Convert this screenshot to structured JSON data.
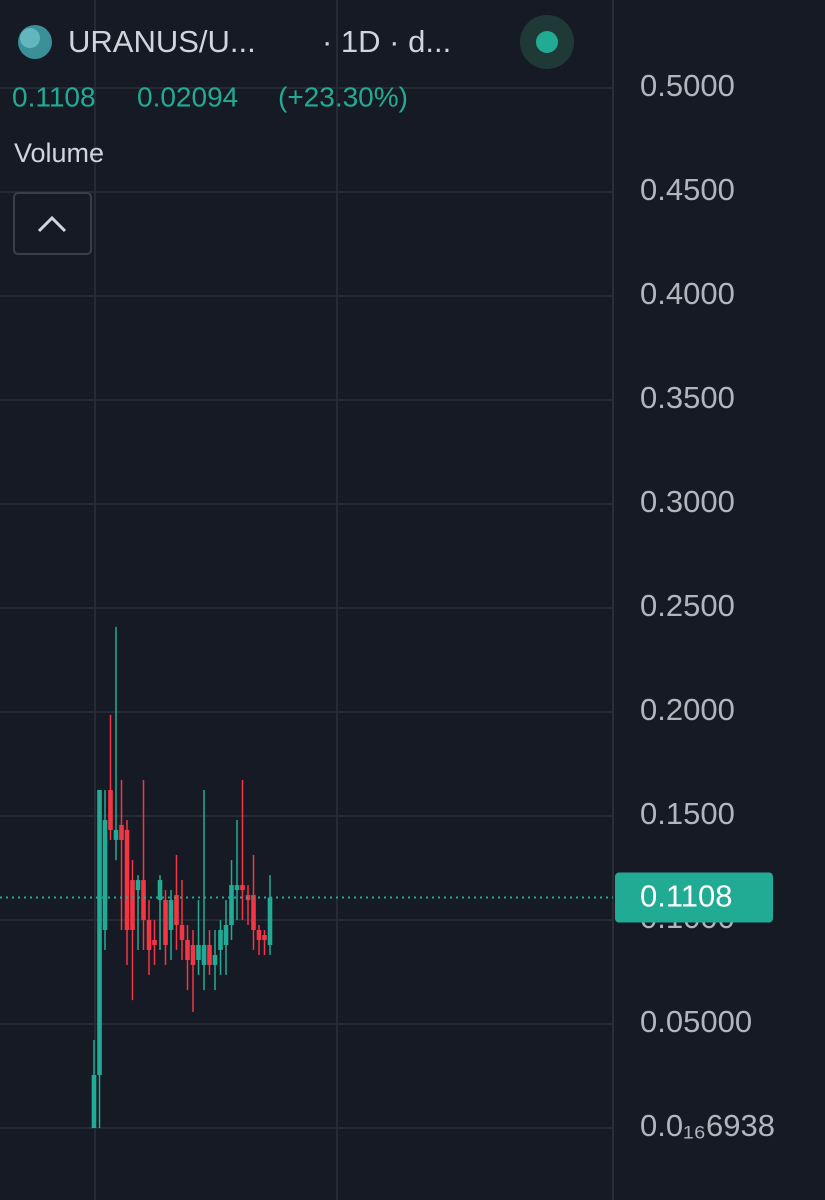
{
  "header": {
    "symbol": "URANUS/U...",
    "interval": "· 1D · d...",
    "change": 0.02094,
    "change_percent": {
      "value": 23.3,
      "label": "(+23.30%)"
    },
    "indicator": "Volume"
  },
  "chart_data": {
    "type": "candlestick",
    "open": [
      0.0,
      0.0255,
      0.0952,
      0.1625,
      0.1385,
      0.1457,
      0.1433,
      0.1192,
      0.1144,
      0.1192,
      0.1,
      0.0904,
      0.1096,
      0.1096,
      0.0952,
      0.112,
      0.0976,
      0.0904,
      0.088,
      0.0808,
      0.0784,
      0.088,
      0.0784,
      0.0856,
      0.088,
      0.0976,
      0.1144,
      0.1168,
      0.112,
      0.112,
      0.0952,
      0.0928,
      0.088
    ],
    "high": [
      0.0423,
      0.1625,
      0.1625,
      0.1986,
      0.2409,
      0.1673,
      0.1481,
      0.1288,
      0.1216,
      0.1673,
      0.1096,
      0.1,
      0.1216,
      0.1144,
      0.1144,
      0.1313,
      0.1192,
      0.0976,
      0.0952,
      0.1096,
      0.1625,
      0.0952,
      0.0952,
      0.1,
      0.1096,
      0.1288,
      0.1481,
      0.1673,
      0.1168,
      0.1313,
      0.0976,
      0.0952,
      0.1216
    ],
    "low": [
      0.0,
      0.0,
      0.0856,
      0.1385,
      0.1288,
      0.0952,
      0.0784,
      0.0615,
      0.0856,
      0.0856,
      0.0736,
      0.0784,
      0.0856,
      0.0784,
      0.0808,
      0.0856,
      0.0808,
      0.0663,
      0.0558,
      0.0736,
      0.0663,
      0.0736,
      0.0663,
      0.0736,
      0.0736,
      0.0904,
      0.1,
      0.1,
      0.0976,
      0.0856,
      0.0832,
      0.0832,
      0.0832
    ],
    "close": [
      0.0255,
      0.1625,
      0.1481,
      0.1433,
      0.1433,
      0.1385,
      0.0952,
      0.0952,
      0.1192,
      0.1,
      0.0856,
      0.088,
      0.1192,
      0.088,
      0.1096,
      0.0976,
      0.0904,
      0.0808,
      0.0784,
      0.088,
      0.088,
      0.0784,
      0.0832,
      0.0952,
      0.0976,
      0.1168,
      0.1168,
      0.1144,
      0.1096,
      0.0952,
      0.0904,
      0.0904,
      0.1108
    ],
    "up_color": "#22ab94",
    "down_color": "#f23645",
    "ylim": [
      -0.0346,
      0.5423
    ],
    "yticks": [
      {
        "value": 0.5,
        "label": "0.5000"
      },
      {
        "value": 0.45,
        "label": "0.4500"
      },
      {
        "value": 0.4,
        "label": "0.4000"
      },
      {
        "value": 0.35,
        "label": "0.3500"
      },
      {
        "value": 0.3,
        "label": "0.3000"
      },
      {
        "value": 0.25,
        "label": "0.2500"
      },
      {
        "value": 0.2,
        "label": "0.2000"
      },
      {
        "value": 0.15,
        "label": "0.1500"
      },
      {
        "value": 0.1,
        "label": "0.1000"
      },
      {
        "value": 0.05,
        "label": "0.05000"
      },
      {
        "value": 6.938e-17,
        "label": "0.0₁₆6938"
      }
    ],
    "grid": true
  }
}
